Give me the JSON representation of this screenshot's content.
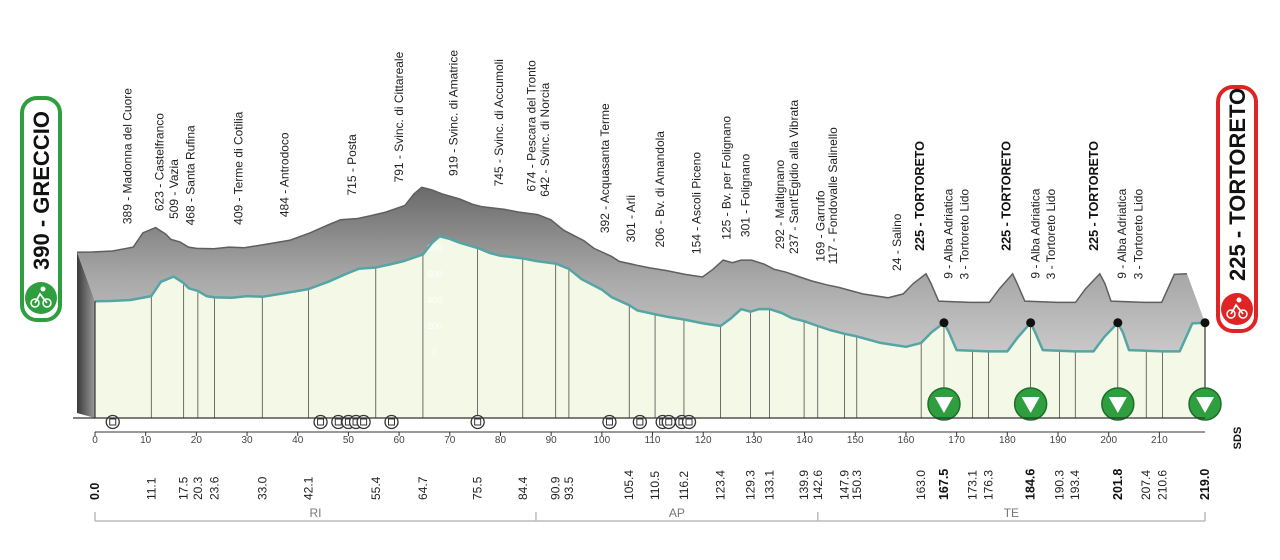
{
  "chart_data": {
    "type": "area",
    "start": {
      "name": "GRECCIO",
      "altitude": 390,
      "label": "390 - GRECCIO",
      "badge_color": "#2e9e3e",
      "icon": "cyclist-icon"
    },
    "finish": {
      "name": "TORTORETO",
      "altitude": 225,
      "label": "225 - TORTORETO",
      "badge_color": "#e02424",
      "icon": "cyclist-icon"
    },
    "x_ticks": [
      0,
      10,
      20,
      30,
      40,
      50,
      60,
      70,
      80,
      90,
      100,
      110,
      120,
      130,
      140,
      150,
      160,
      170,
      180,
      190,
      200,
      210
    ],
    "alt_ticks": [
      0,
      200,
      400,
      600,
      800
    ],
    "xlim": [
      0,
      219
    ],
    "profile": {
      "x": [
        0,
        3,
        7,
        11.1,
        13,
        15.5,
        17.5,
        18.5,
        20.3,
        22,
        23.6,
        27,
        30,
        33,
        37,
        42.1,
        46,
        49.5,
        52,
        55.4,
        58,
        61,
        64.7,
        66.5,
        68,
        70,
        72,
        75.5,
        78,
        80,
        84.4,
        87,
        90.9,
        93.5,
        96,
        98,
        100,
        102,
        105.4,
        107,
        110.5,
        113,
        116.2,
        120,
        123.4,
        125.5,
        127.5,
        129.3,
        131,
        133.1,
        135.5,
        137.5,
        139.9,
        142.6,
        145,
        147.9,
        150.3,
        155,
        160,
        163,
        165,
        167.5,
        168.5,
        170,
        173.1,
        176.3,
        180,
        182,
        184.6,
        185.5,
        187,
        190.3,
        193.4,
        197,
        199,
        201.8,
        202.8,
        204,
        207.4,
        210.6,
        214,
        216.5,
        219
      ],
      "alt": [
        390,
        392,
        400,
        430,
        540,
        580,
        530,
        490,
        470,
        430,
        420,
        418,
        430,
        425,
        450,
        484,
        540,
        600,
        640,
        650,
        672,
        700,
        750,
        840,
        890,
        870,
        840,
        800,
        760,
        740,
        720,
        700,
        680,
        640,
        560,
        520,
        480,
        420,
        360,
        320,
        290,
        270,
        250,
        220,
        200,
        260,
        330,
        310,
        330,
        330,
        300,
        260,
        237,
        200,
        169,
        140,
        120,
        70,
        40,
        70,
        150,
        225,
        150,
        15,
        10,
        5,
        5,
        110,
        225,
        150,
        15,
        10,
        5,
        5,
        110,
        225,
        150,
        15,
        10,
        5,
        5,
        220,
        225
      ]
    },
    "waypoints": [
      {
        "km": 11.1,
        "km_label": "11.1",
        "label": "389 - Madonna del Cuore"
      },
      {
        "km": 17.5,
        "km_label": "17.5",
        "label": "623 - Castelfranco"
      },
      {
        "km": 20.3,
        "km_label": "20.3",
        "label": "509 - Vazia"
      },
      {
        "km": 23.6,
        "km_label": "23.6",
        "label": "468 - Santa Rufina"
      },
      {
        "km": 33.0,
        "km_label": "33.0",
        "label": "409 - Terme di Cotilia"
      },
      {
        "km": 42.1,
        "km_label": "42.1",
        "label": "484 - Antrodoco"
      },
      {
        "km": 55.4,
        "km_label": "55.4",
        "label": "715 - Posta"
      },
      {
        "km": 64.7,
        "km_label": "64.7",
        "label": "791 - Svinc. di Cittareale"
      },
      {
        "km": 75.5,
        "km_label": "75.5",
        "label": "919 - Svinc. di Amatrice"
      },
      {
        "km": 84.4,
        "km_label": "84.4",
        "label": "745 - Svinc. di Accumoli"
      },
      {
        "km": 90.9,
        "km_label": "90.9",
        "label": "674 - Pescara del Tronto"
      },
      {
        "km": 93.5,
        "km_label": "93.5",
        "label": "642 - Svinc. di Norcia"
      },
      {
        "km": 105.4,
        "km_label": "105.4",
        "label": "392 - Acquasanta Terme"
      },
      {
        "km": 110.5,
        "km_label": "110.5",
        "label": "301 - Arli"
      },
      {
        "km": 116.2,
        "km_label": "116.2",
        "label": "206 - Bv. di Amandola"
      },
      {
        "km": 123.4,
        "km_label": "123.4",
        "label": "154 - Ascoli Piceno"
      },
      {
        "km": 129.3,
        "km_label": "129.3",
        "label": "125 - Bv. per Folignano"
      },
      {
        "km": 133.1,
        "km_label": "133.1",
        "label": "301 - Folignano"
      },
      {
        "km": 139.9,
        "km_label": "139.9",
        "label": "292 - Maltignano"
      },
      {
        "km": 142.6,
        "km_label": "142.6",
        "label": "237 - Sant'Egidio alla Vibrata"
      },
      {
        "km": 147.9,
        "km_label": "147.9",
        "label": "169 - Garrufo"
      },
      {
        "km": 150.3,
        "km_label": "150.3",
        "label": "117 - Fondovalle Salinello"
      },
      {
        "km": 163.0,
        "km_label": "163.0",
        "label": "24 - Salino"
      },
      {
        "km": 167.5,
        "km_label": "167.5",
        "label": "225 - TORTORETO",
        "bold": true
      },
      {
        "km": 173.1,
        "km_label": "173.1",
        "label": "9 - Alba Adriatica"
      },
      {
        "km": 176.3,
        "km_label": "176.3",
        "label": "3 - Tortoreto Lido"
      },
      {
        "km": 184.6,
        "km_label": "184.6",
        "label": "225 - TORTORETO",
        "bold": true
      },
      {
        "km": 190.3,
        "km_label": "190.3",
        "label": "9 - Alba Adriatica"
      },
      {
        "km": 193.4,
        "km_label": "193.4",
        "label": "3 - Tortoreto Lido"
      },
      {
        "km": 201.8,
        "km_label": "201.8",
        "label": "225 - TORTORETO",
        "bold": true
      },
      {
        "km": 207.4,
        "km_label": "207.4",
        "label": "9 - Alba Adriatica"
      },
      {
        "km": 210.6,
        "km_label": "210.6",
        "label": "3 - Tortoreto Lido"
      }
    ],
    "zero_label": "0.0",
    "finish_km_label": "219.0",
    "finish_km": 219,
    "provinces": [
      {
        "label": "RI",
        "from": 0,
        "to": 87
      },
      {
        "label": "AP",
        "from": 87,
        "to": 142.6
      },
      {
        "label": "TE",
        "from": 142.6,
        "to": 219
      }
    ],
    "gps_markers": [
      167.5,
      184.6,
      201.8,
      219
    ],
    "town_markers": [
      3.5,
      44.5,
      48,
      50,
      51.5,
      53,
      58.5,
      75.5,
      101.5,
      107.5,
      112,
      113.2,
      115.8,
      117.2
    ],
    "logo": "SDS",
    "colors": {
      "fill": "#f4f8e6",
      "mountain": "#9e9e9e",
      "ridge": "#5f5f5f",
      "road": "#55a5a5",
      "gps": "#2e9e3e"
    }
  }
}
